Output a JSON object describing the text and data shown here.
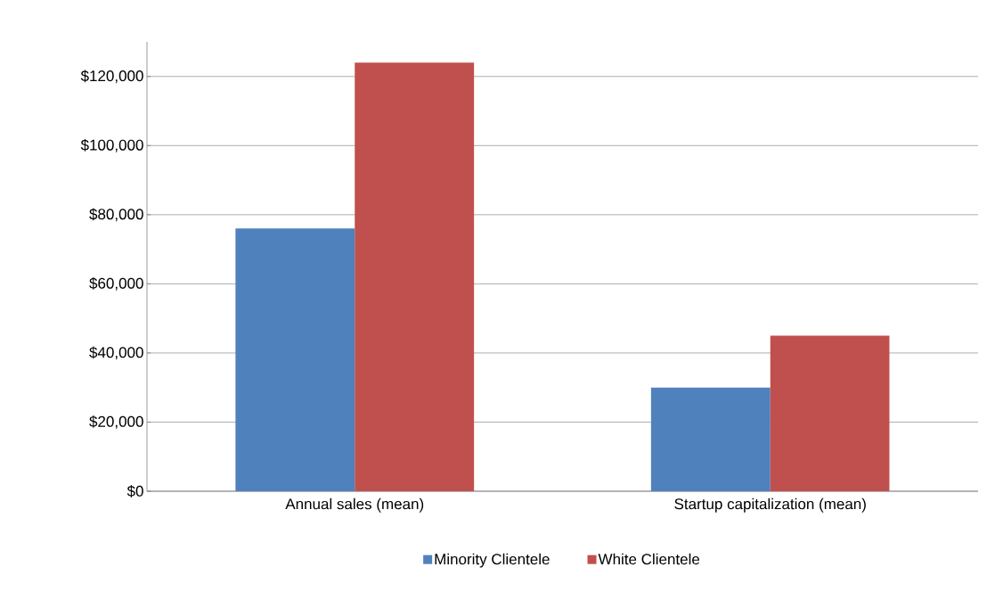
{
  "chart_data": {
    "type": "bar",
    "categories": [
      "Annual sales (mean)",
      "Startup capitalization (mean)"
    ],
    "series": [
      {
        "name": "Minority Clientele",
        "color": "#4f81bd",
        "values": [
          76000,
          30000
        ]
      },
      {
        "name": "White Clientele",
        "color": "#c0504d",
        "values": [
          124000,
          45000
        ]
      }
    ],
    "ylim": [
      0,
      130000
    ],
    "yticks": [
      {
        "value": 0,
        "label": "$0"
      },
      {
        "value": 20000,
        "label": "$20,000"
      },
      {
        "value": 40000,
        "label": "$40,000"
      },
      {
        "value": 60000,
        "label": "$60,000"
      },
      {
        "value": 80000,
        "label": "$80,000"
      },
      {
        "value": 100000,
        "label": "$100,000"
      },
      {
        "value": 120000,
        "label": "$120,000"
      }
    ],
    "grid": "y",
    "legend": "bottom"
  }
}
